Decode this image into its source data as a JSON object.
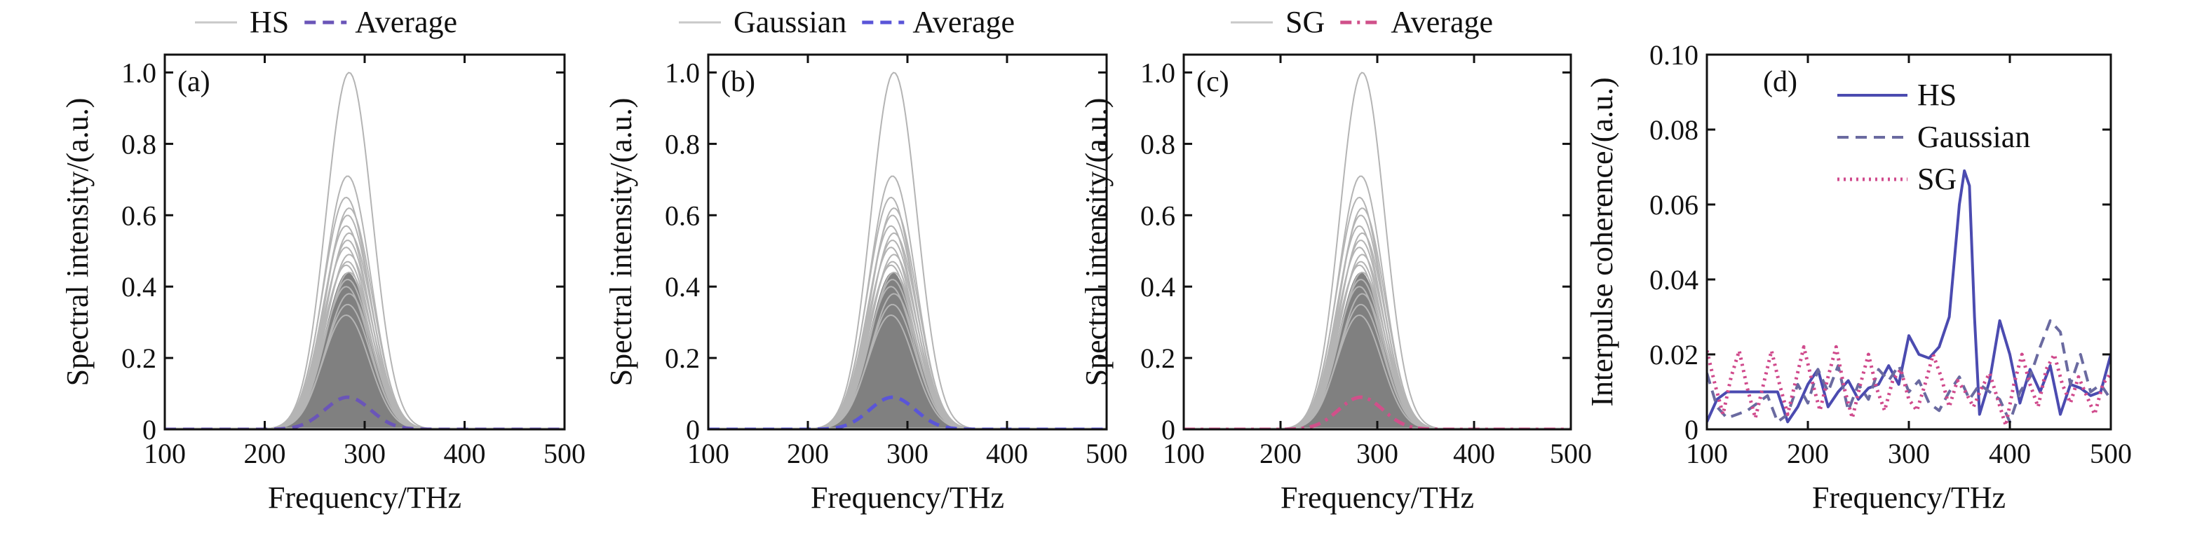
{
  "chart_data": [
    {
      "type": "line",
      "panel_label": "(a)",
      "xlabel": "Frequency/THz",
      "ylabel": "Spectral intensity/(a.u.)",
      "xlim": [
        100,
        500
      ],
      "ylim": [
        0,
        1.05
      ],
      "xticks": [
        "100",
        "200",
        "300",
        "400",
        "500"
      ],
      "yticks": [
        "0",
        "0.2",
        "0.4",
        "0.6",
        "0.8",
        "1.0"
      ],
      "legend_placement": "top-outside",
      "grid": false,
      "spectrum_center_thz": 283,
      "spectrum_sigma_thz": 23,
      "peak_amplitudes": [
        1.0,
        0.71,
        0.65,
        0.62,
        0.6,
        0.57,
        0.55,
        0.53,
        0.51,
        0.49,
        0.47,
        0.46,
        0.44,
        0.42,
        0.4,
        0.38,
        0.35,
        0.32
      ],
      "series": [
        {
          "name": "HS",
          "values_note": "",
          "color": "#c8c8c8",
          "style": "solid"
        },
        {
          "name": "Average",
          "color": "#6a55b8",
          "style": "dashed",
          "peak": 0.09
        }
      ]
    },
    {
      "type": "line",
      "panel_label": "(b)",
      "xlabel": "Frequency/THz",
      "ylabel": "Spectral intensity/(a.u.)",
      "xlim": [
        100,
        500
      ],
      "ylim": [
        0,
        1.05
      ],
      "xticks": [
        "100",
        "200",
        "300",
        "400",
        "500"
      ],
      "yticks": [
        "0",
        "0.2",
        "0.4",
        "0.6",
        "0.8",
        "1.0"
      ],
      "legend_placement": "top-outside",
      "grid": false,
      "spectrum_center_thz": 285,
      "spectrum_sigma_thz": 23,
      "peak_amplitudes": [
        1.0,
        0.71,
        0.65,
        0.62,
        0.6,
        0.57,
        0.55,
        0.53,
        0.51,
        0.49,
        0.47,
        0.46,
        0.44,
        0.42,
        0.4,
        0.38,
        0.35,
        0.32
      ],
      "series": [
        {
          "name": "Gaussian",
          "color": "#c8c8c8",
          "style": "solid"
        },
        {
          "name": "Average",
          "color": "#5a55d8",
          "style": "dashed",
          "peak": 0.09
        }
      ]
    },
    {
      "type": "line",
      "panel_label": "(c)",
      "xlabel": "Frequency/THz",
      "ylabel": "Spectral intensity/(a.u.)",
      "xlim": [
        100,
        500
      ],
      "ylim": [
        0,
        1.05
      ],
      "xticks": [
        "100",
        "200",
        "300",
        "400",
        "500"
      ],
      "yticks": [
        "0",
        "0.2",
        "0.4",
        "0.6",
        "0.8",
        "1.0"
      ],
      "legend_placement": "top-outside",
      "grid": false,
      "spectrum_center_thz": 283,
      "spectrum_sigma_thz": 23,
      "peak_amplitudes": [
        1.0,
        0.71,
        0.65,
        0.62,
        0.6,
        0.57,
        0.55,
        0.53,
        0.51,
        0.49,
        0.47,
        0.46,
        0.44,
        0.42,
        0.4,
        0.38,
        0.35,
        0.32
      ],
      "series": [
        {
          "name": "SG",
          "color": "#c8c8c8",
          "style": "solid"
        },
        {
          "name": "Average",
          "color": "#d0508a",
          "style": "dashdot",
          "peak": 0.09
        }
      ]
    },
    {
      "type": "line",
      "panel_label": "(d)",
      "xlabel": "Frequency/THz",
      "ylabel": "Interpulse coherence/(a.u.)",
      "xlim": [
        100,
        500
      ],
      "ylim": [
        0,
        0.1
      ],
      "xticks": [
        "100",
        "200",
        "300",
        "400",
        "500"
      ],
      "yticks": [
        "0",
        "0.02",
        "0.04",
        "0.06",
        "0.08",
        "0.10"
      ],
      "legend_placement": "top-left-inside",
      "grid": false,
      "series": [
        {
          "name": "HS",
          "color": "#4b4bb0",
          "style": "solid",
          "x": [
            100,
            110,
            120,
            130,
            140,
            150,
            160,
            170,
            180,
            190,
            200,
            210,
            220,
            230,
            240,
            250,
            260,
            270,
            280,
            290,
            300,
            310,
            320,
            330,
            340,
            345,
            350,
            355,
            360,
            365,
            370,
            380,
            390,
            400,
            410,
            420,
            430,
            440,
            450,
            460,
            470,
            480,
            490,
            500
          ],
          "y": [
            0.002,
            0.008,
            0.01,
            0.01,
            0.01,
            0.01,
            0.01,
            0.01,
            0.002,
            0.006,
            0.012,
            0.016,
            0.006,
            0.01,
            0.013,
            0.008,
            0.011,
            0.012,
            0.017,
            0.012,
            0.025,
            0.02,
            0.019,
            0.022,
            0.03,
            0.045,
            0.06,
            0.069,
            0.065,
            0.03,
            0.004,
            0.013,
            0.029,
            0.02,
            0.007,
            0.016,
            0.01,
            0.017,
            0.004,
            0.012,
            0.011,
            0.009,
            0.01,
            0.02
          ]
        },
        {
          "name": "Gaussian",
          "color": "#6a6aa0",
          "style": "dashed",
          "x": [
            100,
            110,
            120,
            130,
            140,
            150,
            160,
            170,
            180,
            190,
            200,
            210,
            220,
            230,
            240,
            250,
            260,
            270,
            280,
            290,
            300,
            310,
            320,
            330,
            340,
            350,
            360,
            370,
            380,
            390,
            400,
            410,
            420,
            430,
            440,
            450,
            460,
            470,
            480,
            490,
            500
          ],
          "y": [
            0.015,
            0.006,
            0.003,
            0.004,
            0.005,
            0.007,
            0.009,
            0.002,
            0.004,
            0.012,
            0.007,
            0.016,
            0.01,
            0.017,
            0.005,
            0.012,
            0.008,
            0.016,
            0.013,
            0.017,
            0.01,
            0.013,
            0.007,
            0.005,
            0.01,
            0.014,
            0.008,
            0.012,
            0.01,
            0.008,
            0.002,
            0.01,
            0.014,
            0.022,
            0.029,
            0.026,
            0.012,
            0.02,
            0.01,
            0.012,
            0.008
          ]
        },
        {
          "name": "SG",
          "color": "#d04a8c",
          "style": "dotted",
          "x": [
            100,
            108,
            116,
            124,
            132,
            140,
            148,
            156,
            164,
            172,
            180,
            188,
            196,
            204,
            212,
            220,
            228,
            236,
            244,
            252,
            260,
            268,
            276,
            284,
            292,
            300,
            308,
            316,
            324,
            332,
            340,
            348,
            356,
            364,
            372,
            380,
            388,
            396,
            404,
            412,
            420,
            428,
            436,
            444,
            452,
            460,
            468,
            476,
            484,
            492,
            500
          ],
          "y": [
            0.021,
            0.012,
            0.004,
            0.014,
            0.021,
            0.011,
            0.003,
            0.012,
            0.021,
            0.012,
            0.004,
            0.013,
            0.022,
            0.013,
            0.005,
            0.014,
            0.022,
            0.011,
            0.003,
            0.012,
            0.02,
            0.011,
            0.005,
            0.013,
            0.016,
            0.008,
            0.005,
            0.012,
            0.02,
            0.014,
            0.006,
            0.013,
            0.01,
            0.006,
            0.011,
            0.015,
            0.008,
            0.001,
            0.012,
            0.02,
            0.012,
            0.006,
            0.016,
            0.02,
            0.012,
            0.007,
            0.014,
            0.009,
            0.004,
            0.012,
            0.015
          ]
        }
      ]
    }
  ]
}
